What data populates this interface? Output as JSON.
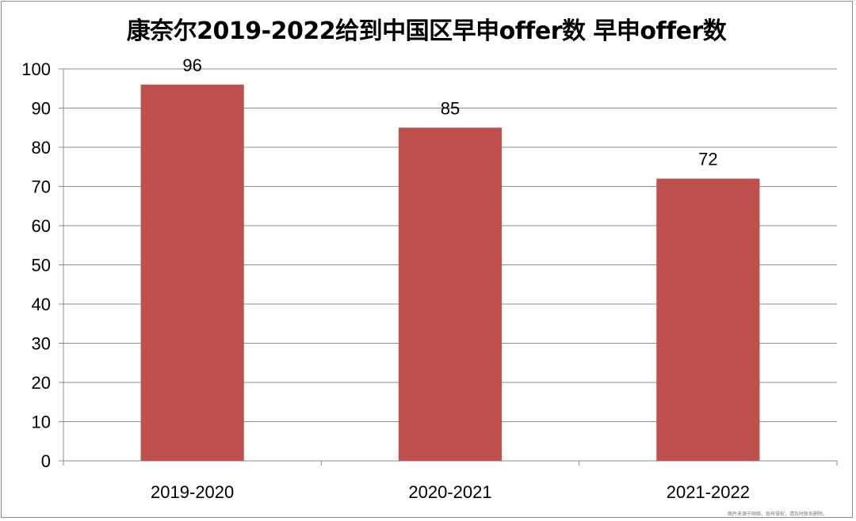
{
  "chart_data": {
    "type": "bar",
    "title": "康奈尔2019-2022给到中国区早申offer数 早申offer数",
    "categories": [
      "2019-2020",
      "2020-2021",
      "2021-2022"
    ],
    "values": [
      96,
      85,
      72
    ],
    "data_labels": [
      "96",
      "85",
      "72"
    ],
    "ylim": [
      0,
      100
    ],
    "yticks": [
      0,
      10,
      20,
      30,
      40,
      50,
      60,
      70,
      80,
      90,
      100
    ],
    "grid": true,
    "legend": "none",
    "bar_color": "#c0504d",
    "grid_color": "#8c8c8c"
  },
  "watermark": "图片来源于网络，如有侵权，请及时联系删除。"
}
